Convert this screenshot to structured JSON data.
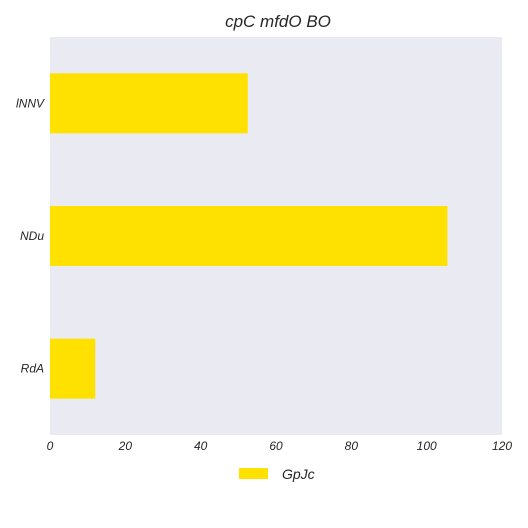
{
  "chart_data": {
    "type": "bar",
    "orientation": "horizontal",
    "title": "cpC mfdO BO",
    "categories": [
      "lNNV",
      "NDu",
      "RdA"
    ],
    "series": [
      {
        "name": "GpJc",
        "values": [
          52.5,
          105.5,
          12
        ],
        "color": "#FFE100"
      }
    ],
    "xlim": [
      0,
      120
    ],
    "xticks": [
      0,
      20,
      40,
      60,
      80,
      100,
      120
    ],
    "xlabel": "",
    "ylabel": "",
    "grid": false,
    "legend_position": "bottom-center",
    "plot_background": "#EAEAF2"
  }
}
